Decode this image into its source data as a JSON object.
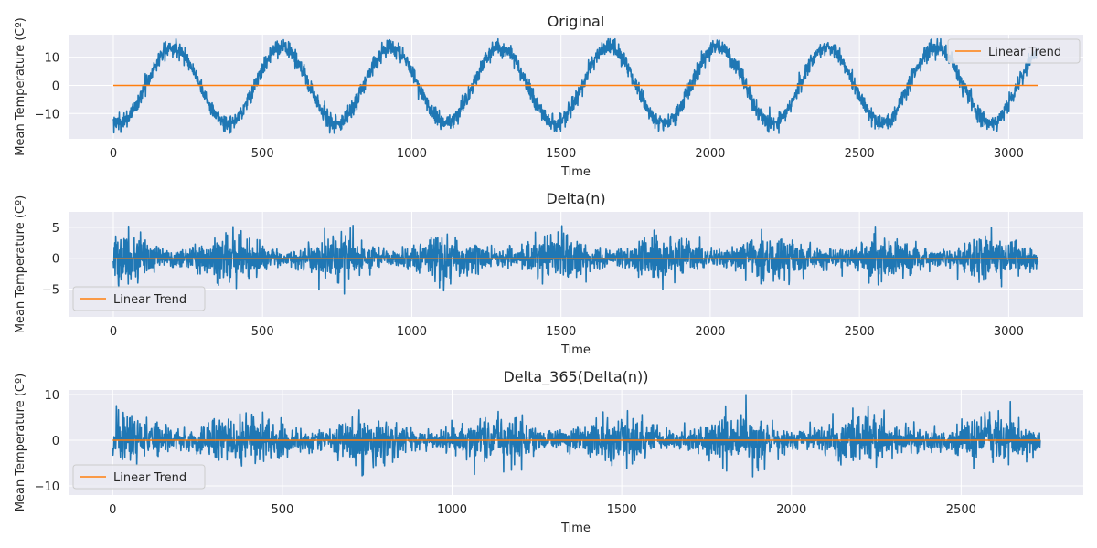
{
  "colors": {
    "background": "#eaeaf2",
    "grid": "#ffffff",
    "series": "#1f77b4",
    "trend": "#ff7f0e"
  },
  "chart_data": [
    {
      "type": "line",
      "title": "Original",
      "xlabel": "Time",
      "ylabel": "Mean Temperature (Cº)",
      "xlim": [
        -150,
        3250
      ],
      "ylim": [
        -19,
        18
      ],
      "xticks": [
        0,
        500,
        1000,
        1500,
        2000,
        2500,
        3000
      ],
      "xtick_labels": [
        "0",
        "500",
        "1000",
        "1500",
        "2000",
        "2500",
        "3000"
      ],
      "yticks": [
        -10,
        0,
        10
      ],
      "ytick_labels": [
        "−10",
        "0",
        "10"
      ],
      "legend": {
        "label": "Linear Trend",
        "position": "upper-right"
      },
      "grid": true,
      "n_points": 3100,
      "series": [
        {
          "kind": "seasonal",
          "amplitude": 13.5,
          "period": 365.25,
          "phase_peak": 200,
          "noise": 1.5,
          "values_sample": [
            [
              0,
              -13
            ],
            [
              100,
              -5
            ],
            [
              200,
              13.5
            ],
            [
              300,
              1
            ],
            [
              440,
              -14
            ],
            [
              570,
              12
            ],
            [
              770,
              -15
            ],
            [
              940,
              14
            ],
            [
              1140,
              -13
            ],
            [
              1310,
              13
            ],
            [
              1480,
              -14
            ],
            [
              1680,
              14
            ],
            [
              1880,
              -15
            ],
            [
              2040,
              13
            ],
            [
              2240,
              -10
            ],
            [
              2390,
              16
            ],
            [
              2600,
              -15
            ],
            [
              2780,
              14
            ],
            [
              2930,
              -13
            ],
            [
              3095,
              8
            ]
          ]
        },
        {
          "name": "Linear Trend",
          "kind": "trend",
          "x": [
            0,
            3100
          ],
          "y": [
            0,
            0
          ]
        }
      ]
    },
    {
      "type": "line",
      "title": "Delta(n)",
      "xlabel": "Time",
      "ylabel": "Mean Temperature (Cº)",
      "xlim": [
        -150,
        3250
      ],
      "ylim": [
        -9.5,
        7.5
      ],
      "xticks": [
        0,
        500,
        1000,
        1500,
        2000,
        2500,
        3000
      ],
      "xtick_labels": [
        "0",
        "500",
        "1000",
        "1500",
        "2000",
        "2500",
        "3000"
      ],
      "yticks": [
        -5,
        0,
        5
      ],
      "ytick_labels": [
        "−5",
        "0",
        "5"
      ],
      "legend": {
        "label": "Linear Trend",
        "position": "lower-left"
      },
      "grid": true,
      "n_points": 3099,
      "series": [
        {
          "kind": "noise",
          "scale": 1.7,
          "max": 6.6,
          "min": -8.8
        },
        {
          "name": "Linear Trend",
          "kind": "trend",
          "x": [
            0,
            3099
          ],
          "y": [
            0,
            0
          ]
        }
      ]
    },
    {
      "type": "line",
      "title": "Delta_365(Delta(n))",
      "xlabel": "Time",
      "ylabel": "Mean Temperature (Cº)",
      "xlim": [
        -130,
        2860
      ],
      "ylim": [
        -12,
        11
      ],
      "xticks": [
        0,
        500,
        1000,
        1500,
        2000,
        2500
      ],
      "xtick_labels": [
        "0",
        "500",
        "1000",
        "1500",
        "2000",
        "2500"
      ],
      "yticks": [
        -10,
        0,
        10
      ],
      "ytick_labels": [
        "−10",
        "0",
        "10"
      ],
      "legend": {
        "label": "Linear Trend",
        "position": "lower-left"
      },
      "grid": true,
      "n_points": 2734,
      "series": [
        {
          "kind": "noise",
          "scale": 2.5,
          "max": 10.1,
          "min": -11.2
        },
        {
          "name": "Linear Trend",
          "kind": "trend",
          "x": [
            0,
            2734
          ],
          "y": [
            0,
            0
          ]
        }
      ]
    }
  ]
}
